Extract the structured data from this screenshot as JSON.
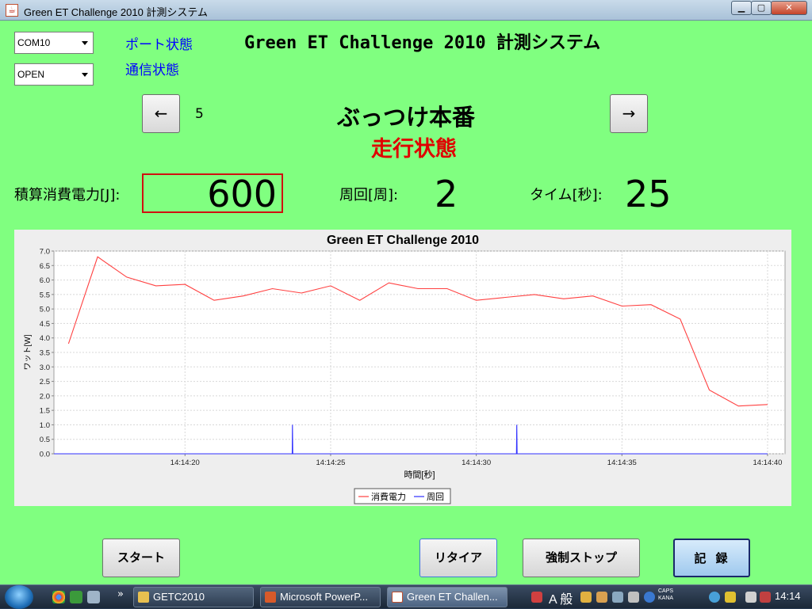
{
  "window": {
    "title": "Green ET Challenge 2010 計測システム",
    "buttons": {
      "minimize": "▁",
      "maximize": "▢",
      "close": "✕"
    }
  },
  "controls": {
    "port_select": "COM10",
    "open_select": "OPEN",
    "port_status": "ポート状態",
    "comm_status": "通信状態"
  },
  "heading": "Green ET Challenge 2010 計測システム",
  "run": {
    "prev": "←",
    "next": "→",
    "number": "5",
    "mode": "ぶっつけ本番",
    "state": "走行状態"
  },
  "metrics": {
    "energy_label": "積算消費電力[J]:",
    "energy_value": "600",
    "lap_label": "周回[周]:",
    "lap_value": "2",
    "time_label": "タイム[秒]:",
    "time_value": "25"
  },
  "chart_data": {
    "type": "line",
    "title": "Green ET Challenge 2010",
    "xlabel": "時間[秒]",
    "ylabel": "ワット[W]",
    "ylim": [
      0,
      7.0
    ],
    "yticks": [
      "0.0",
      "0.5",
      "1.0",
      "1.5",
      "2.0",
      "2.5",
      "3.0",
      "3.5",
      "4.0",
      "4.5",
      "5.0",
      "5.5",
      "6.0",
      "6.5",
      "7.0"
    ],
    "xticks": [
      {
        "label": "14:14:20",
        "t": 20
      },
      {
        "label": "14:14:25",
        "t": 25
      },
      {
        "label": "14:14:30",
        "t": 30
      },
      {
        "label": "14:14:35",
        "t": 35
      },
      {
        "label": "14:14:40",
        "t": 40
      }
    ],
    "xlim": [
      15.5,
      40.6
    ],
    "grid": true,
    "legend_position": "bottom",
    "series": [
      {
        "name": "消費電力",
        "color": "#ff4040",
        "x": [
          16,
          17,
          18,
          19,
          20,
          21,
          22,
          23,
          24,
          25,
          26,
          27,
          28,
          29,
          30,
          31,
          32,
          33,
          34,
          35,
          36,
          37,
          38,
          39,
          40
        ],
        "y": [
          3.8,
          6.8,
          6.1,
          5.8,
          5.85,
          5.3,
          5.45,
          5.7,
          5.55,
          5.8,
          5.3,
          5.9,
          5.7,
          5.7,
          5.3,
          5.4,
          5.5,
          5.35,
          5.45,
          5.1,
          5.15,
          4.65,
          2.2,
          1.65,
          1.7
        ]
      },
      {
        "name": "周回",
        "color": "#3030ff",
        "x": [
          15.5,
          23.68,
          23.69,
          23.7,
          31.38,
          31.39,
          31.4,
          40.0
        ],
        "y": [
          0,
          0,
          1.0,
          0,
          0,
          1.0,
          0,
          0
        ]
      }
    ]
  },
  "buttons": {
    "start": "スタート",
    "retire": "リタイア",
    "force_stop": "強制ストップ",
    "record": "記録"
  },
  "taskbar": {
    "tasks": [
      "GETC2010",
      "Microsoft PowerP...",
      "Green ET Challen..."
    ],
    "ime": "A 般",
    "caps": "CAPS",
    "kana": "KANA",
    "clock": "14:14"
  }
}
